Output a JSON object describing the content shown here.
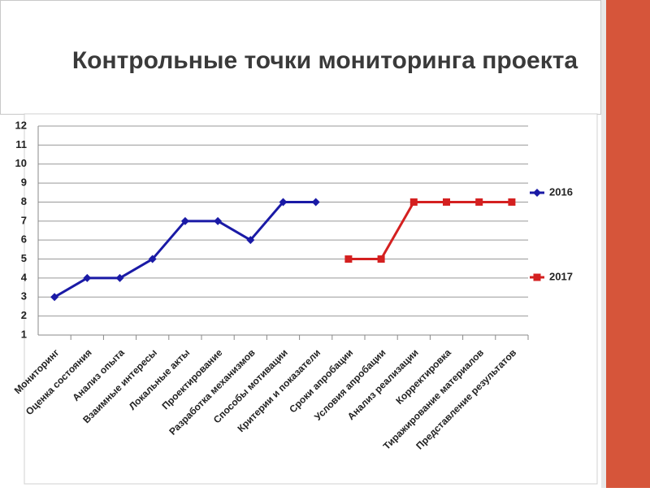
{
  "chart_data": {
    "type": "line",
    "title": "Контрольные точки мониторинга проекта",
    "categories": [
      "Мониторинг",
      "Оценка состояния",
      "Анализ опыта",
      "Взаимные интересы",
      "Локальные акты",
      "Проектирование",
      "Разработка механизмов",
      "Способы мотивации",
      "Критерии и показатели",
      "Сроки апробации",
      "Условия апробации",
      "Анализ реализации",
      "Корректировка",
      "Тиражирование материалов",
      "Представление результатов"
    ],
    "series": [
      {
        "name": "2016",
        "color": "#1a1aa6",
        "marker": "diamond",
        "values": [
          3,
          4,
          4,
          5,
          7,
          7,
          6,
          8,
          8,
          null,
          null,
          null,
          null,
          null,
          null
        ]
      },
      {
        "name": "2017",
        "color": "#d42020",
        "marker": "square",
        "values": [
          null,
          null,
          null,
          null,
          null,
          null,
          null,
          null,
          null,
          5,
          5,
          8,
          8,
          8,
          8
        ]
      }
    ],
    "ylim": [
      1,
      12
    ],
    "yticks": [
      1,
      2,
      3,
      4,
      5,
      6,
      7,
      8,
      9,
      10,
      11,
      12
    ],
    "grid": true,
    "legend": "right"
  }
}
